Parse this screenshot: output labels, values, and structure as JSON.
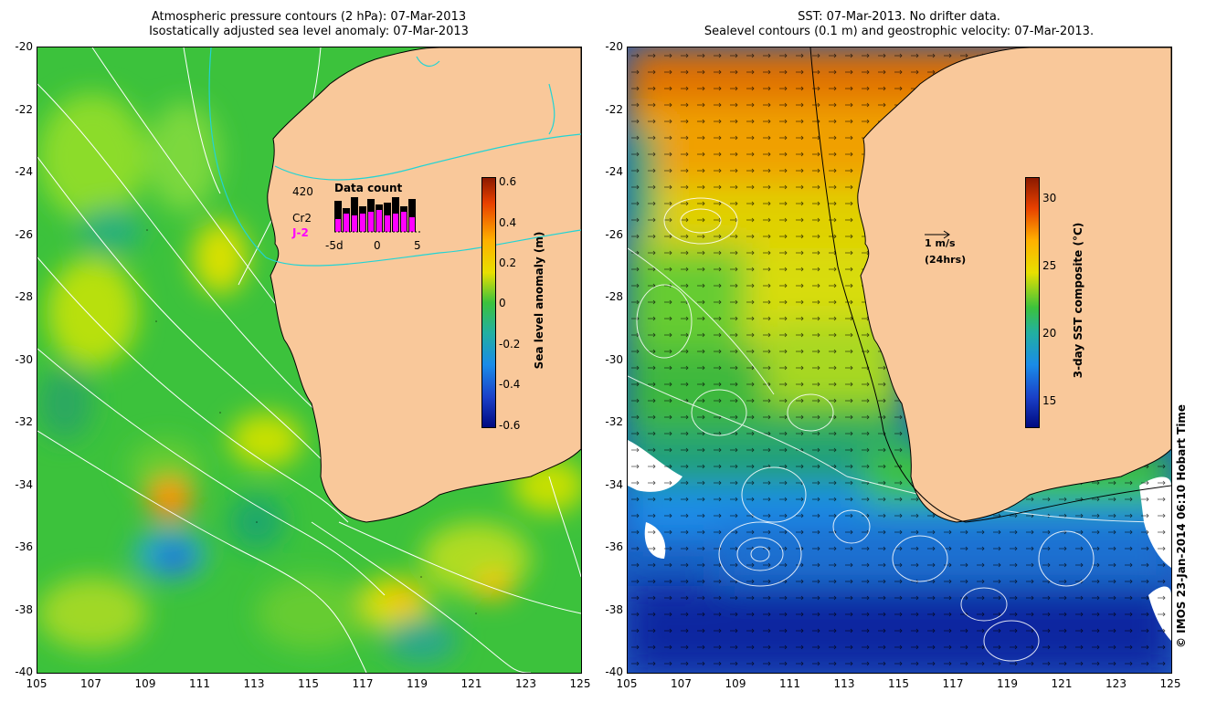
{
  "left_panel": {
    "title_line1": "Atmospheric pressure contours (2 hPa): 07-Mar-2013",
    "title_line2": "Isostatically adjusted sea level anomaly: 07-Mar-2013",
    "inset": {
      "count_label": "420",
      "title": "Data count",
      "satellite1": "Cr2",
      "satellite2": "J-2",
      "satellite2_color": "#ff00ff",
      "ticks": [
        "-5d",
        "0",
        "5"
      ],
      "bars_black": [
        0.85,
        0.65,
        0.95,
        0.7,
        0.9,
        0.75,
        0.8,
        0.95,
        0.7,
        0.9
      ],
      "bars_magenta": [
        0.35,
        0.5,
        0.45,
        0.5,
        0.55,
        0.6,
        0.45,
        0.5,
        0.55,
        0.4
      ]
    },
    "colorbar": {
      "label": "Sea level anomaly (m)",
      "ticks": [
        "0.6",
        "0.4",
        "0.2",
        "0",
        "-0.2",
        "-0.4",
        "-0.6"
      ]
    }
  },
  "right_panel": {
    "title_line1": "SST: 07-Mar-2013. No drifter data.",
    "title_line2": "Sealevel contours (0.1 m) and geostrophic velocity: 07-Mar-2013.",
    "scale_label1": "1 m/s",
    "scale_label2": "(24hrs)",
    "colorbar": {
      "label": "3-day SST composite (°C)",
      "ticks": [
        "30",
        "25",
        "20",
        "15"
      ]
    }
  },
  "axes": {
    "lat_ticks": [
      "-20",
      "-22",
      "-24",
      "-26",
      "-28",
      "-30",
      "-32",
      "-34",
      "-36",
      "-38",
      "-40"
    ],
    "lon_ticks": [
      "105",
      "107",
      "109",
      "111",
      "113",
      "115",
      "117",
      "119",
      "121",
      "123",
      "125"
    ]
  },
  "stamp": "© IMOS 23-Jan-2014 06:10 Hobart Time",
  "colors": {
    "land": "#f9c89a",
    "ocean_green": "#3cc23c",
    "coastline": "#000000",
    "pressure_contour": "#ffffff",
    "offshore_contour": "#22d4d4"
  }
}
